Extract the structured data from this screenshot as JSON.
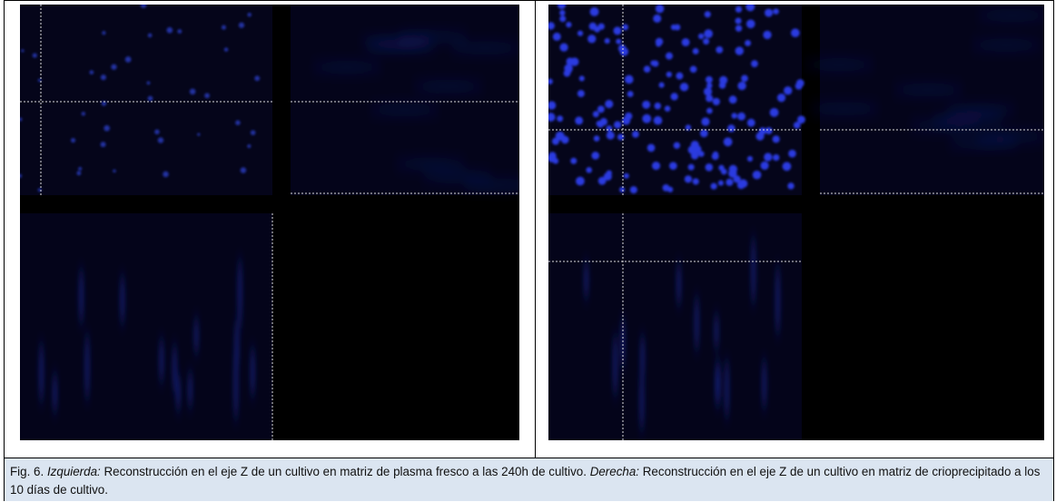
{
  "figure": {
    "caption": {
      "label": "Fig. 6.",
      "left_label": "Izquierda:",
      "left_text": "Reconstrucción en el eje Z de un cultivo en matriz de plasma fresco a las 240h de cultivo.",
      "right_label": "Derecha:",
      "right_text": "Reconstrucción en el eje Z de un cultivo en matriz de crioprecipitado a los 10 días de cultivo."
    }
  }
}
